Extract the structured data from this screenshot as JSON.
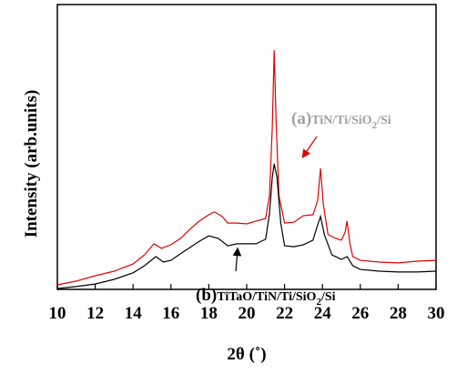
{
  "chart_data": {
    "type": "line",
    "x_label": "2θ (˚)",
    "y_label": "Intensity (arb.units)",
    "xlim": [
      10,
      30
    ],
    "xticks": [
      10,
      12,
      14,
      16,
      18,
      20,
      22,
      24,
      26,
      28,
      30
    ],
    "ylim": [
      0,
      100
    ],
    "series": [
      {
        "color": "#e00000",
        "x": [
          10,
          11,
          12,
          13,
          14,
          14.6,
          15.1,
          15.5,
          16,
          16.5,
          17,
          17.5,
          18,
          18.3,
          18.7,
          19,
          19.5,
          20,
          20.5,
          21,
          21.2,
          21.35,
          21.45,
          21.55,
          21.7,
          22,
          22.5,
          23,
          23.5,
          23.75,
          23.9,
          24.05,
          24.3,
          24.7,
          25,
          25.2,
          25.3,
          25.45,
          25.6,
          26,
          27,
          28,
          29,
          30
        ],
        "values": [
          1.6,
          2.9,
          4.8,
          6.4,
          8.9,
          12.1,
          16,
          14.4,
          15.7,
          17.9,
          21.1,
          24,
          26.2,
          27.2,
          25.6,
          23.3,
          23.3,
          23,
          24,
          24.9,
          32.9,
          56.9,
          84,
          60,
          32.9,
          23.3,
          23.6,
          25.9,
          26.2,
          31.3,
          42.5,
          29.7,
          19.2,
          17.9,
          17.3,
          20.1,
          24,
          16,
          11.5,
          10.2,
          9.6,
          9.3,
          9.9,
          10.2
        ]
      },
      {
        "color": "#000000",
        "x": [
          10,
          11,
          12,
          13,
          14,
          14.6,
          15.2,
          15.6,
          16,
          16.5,
          17,
          17.5,
          18,
          18.5,
          19,
          19.5,
          20,
          20.5,
          21,
          21.2,
          21.35,
          21.45,
          21.6,
          21.8,
          22,
          22.5,
          23,
          23.5,
          23.75,
          23.9,
          24.1,
          24.5,
          25,
          25.3,
          25.6,
          26,
          27,
          28,
          29,
          30
        ],
        "values": [
          0.3,
          1,
          1.9,
          3.5,
          5.8,
          8.3,
          11.5,
          9.6,
          10.2,
          12.5,
          14.7,
          16.9,
          18.8,
          17.9,
          15.3,
          16,
          16,
          16,
          17.6,
          26.5,
          39.3,
          44.1,
          39.3,
          23.3,
          15.3,
          15,
          15.7,
          17.3,
          22.7,
          25.6,
          19.2,
          12.1,
          10.5,
          11.5,
          8.3,
          7,
          6.4,
          6.1,
          6.1,
          6.4
        ]
      }
    ],
    "annotations": [
      {
        "parts": [
          "(a)",
          "TiN/Ti/SiO",
          "2",
          "/Si"
        ],
        "color": "#a0a0a0"
      },
      {
        "parts": [
          "(b)",
          "TiTaO/TiN/Ti/SiO",
          "2",
          "/Si"
        ],
        "color": "#000000"
      }
    ]
  }
}
